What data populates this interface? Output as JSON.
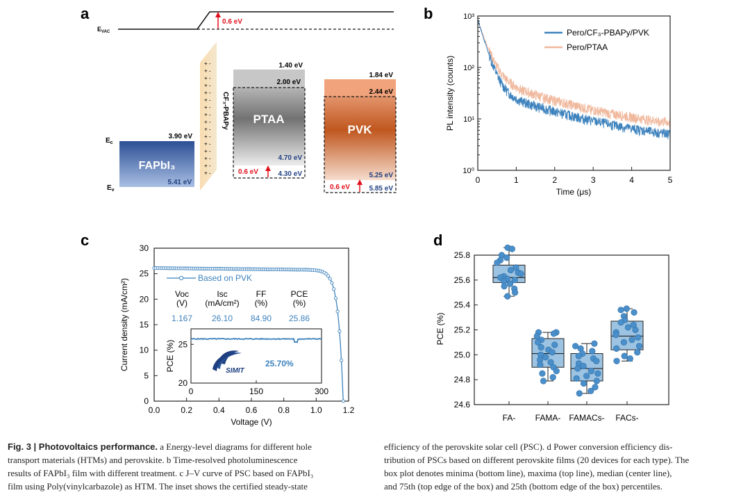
{
  "panels": {
    "a": "a",
    "b": "b",
    "c": "c",
    "d": "d"
  },
  "colors": {
    "blue": "#3d82bd",
    "peach": "#f0b89c",
    "red": "#e0101c",
    "navy": "#1f3f80",
    "point": "#4a8fca",
    "box": "#9dc3e2"
  },
  "panel_a": {
    "evac": "E",
    "evac_sub": "VAC",
    "ec": "E",
    "ec_sub": "c",
    "ev": "E",
    "ev_sub": "v",
    "shift": "0.6 eV",
    "fapbi3": {
      "name": "FAPbI₃",
      "top": "3.90 eV",
      "bottom": "5.41 eV"
    },
    "cf3": {
      "name": "CF₃-PBAPy",
      "charges": "+ -"
    },
    "ptaa": {
      "name": "PTAA",
      "lumo_old": "1.40 eV",
      "lumo_new": "2.00 eV",
      "homo_new": "4.70 eV",
      "homo_old": "4.30 eV",
      "shift": "0.6 eV"
    },
    "pvk": {
      "name": "PVK",
      "lumo_old": "1.84 eV",
      "lumo_new": "2.44 eV",
      "homo_new": "5.25 eV",
      "homo_old": "5.85 eV",
      "shift": "0.6 eV"
    }
  },
  "chart_data": [
    {
      "panel": "b",
      "type": "line",
      "xlabel": "Time (μs)",
      "ylabel": "PL intensity (counts)",
      "xlim": [
        0,
        5
      ],
      "ylim": [
        1,
        1000
      ],
      "yscale": "log",
      "xticks": [
        "0",
        "1",
        "2",
        "3",
        "4",
        "5"
      ],
      "yticks": [
        "10⁰",
        "10¹",
        "10²",
        "10³"
      ],
      "legend": "top-right",
      "series": [
        {
          "name": "Pero/CF₃-PBAPy/PVK",
          "color": "#3d82bd",
          "amp1": 820,
          "tau1": 0.17,
          "amp2": 35,
          "tau2": 1.7,
          "floor": 3.2
        },
        {
          "name": "Pero/PTAA",
          "color": "#f0b89c",
          "amp1": 750,
          "tau1": 0.19,
          "amp2": 60,
          "tau2": 1.55,
          "floor": 6.3
        }
      ]
    },
    {
      "panel": "c",
      "type": "line",
      "xlabel": "Voltage (V)",
      "ylabel": "Current density (mA/cm²)",
      "xlim": [
        0,
        1.2
      ],
      "ylim": [
        0,
        30
      ],
      "xticks": [
        "0.0",
        "0.2",
        "0.4",
        "0.6",
        "0.8",
        "1.0",
        "1.2"
      ],
      "yticks": [
        "0",
        "5",
        "10",
        "15",
        "20",
        "25",
        "30"
      ],
      "legend": "Based on PVK",
      "series": [
        {
          "name": "Based on PVK",
          "color": "#3d82bd",
          "jsc": 26.1,
          "voc": 1.167
        }
      ],
      "table": {
        "headers": [
          "Voc",
          "Isc",
          "FF",
          "PCE"
        ],
        "units": [
          "(V)",
          "(mA/cm²)",
          "(%)",
          "(%)"
        ],
        "values": [
          "1.167",
          "26.10",
          "84.90",
          "25.86"
        ]
      },
      "inset": {
        "type": "line",
        "ylabel": "PCE (%)",
        "xlim": [
          0,
          300
        ],
        "ylim": [
          20,
          27
        ],
        "xticks": [
          "0",
          "150",
          "300"
        ],
        "yticks": [
          "20",
          "25"
        ],
        "value": 25.7,
        "label": "25.70%",
        "logo": "SIMIT"
      }
    },
    {
      "panel": "d",
      "type": "box",
      "ylabel": "PCE (%)",
      "ylim": [
        24.6,
        25.8
      ],
      "yticks": [
        "24.6",
        "24.8",
        "25.0",
        "25.2",
        "25.4",
        "25.6",
        "25.8"
      ],
      "categories": [
        "FA-",
        "FAMA-",
        "FAMACs-",
        "FACs-"
      ],
      "boxes": [
        {
          "min": 25.47,
          "q1": 25.58,
          "median": 25.62,
          "q3": 25.72,
          "max": 25.86
        },
        {
          "min": 24.79,
          "q1": 24.9,
          "median": 25.01,
          "q3": 25.13,
          "max": 25.18
        },
        {
          "min": 24.69,
          "q1": 24.79,
          "median": 24.89,
          "q3": 25.01,
          "max": 25.09
        },
        {
          "min": 24.95,
          "q1": 25.04,
          "median": 25.15,
          "q3": 25.27,
          "max": 25.37
        }
      ],
      "points": [
        [
          25.86,
          25.85,
          25.8,
          25.78,
          25.76,
          25.74,
          25.7,
          25.68,
          25.66,
          25.65,
          25.63,
          25.62,
          25.61,
          25.6,
          25.59,
          25.57,
          25.55,
          25.53,
          25.5,
          25.47
        ],
        [
          25.18,
          25.18,
          25.17,
          25.15,
          25.12,
          25.1,
          25.08,
          25.06,
          25.04,
          25.02,
          25.0,
          24.98,
          24.96,
          24.94,
          24.92,
          24.9,
          24.87,
          24.85,
          24.82,
          24.79
        ],
        [
          25.09,
          25.07,
          25.05,
          25.03,
          25.01,
          24.99,
          24.97,
          24.95,
          24.93,
          24.91,
          24.89,
          24.87,
          24.85,
          24.83,
          24.81,
          24.79,
          24.77,
          24.74,
          24.71,
          24.69
        ],
        [
          25.37,
          25.36,
          25.34,
          25.31,
          25.28,
          25.26,
          25.24,
          25.22,
          25.2,
          25.18,
          25.16,
          25.14,
          25.12,
          25.1,
          25.07,
          25.05,
          25.02,
          24.99,
          24.97,
          24.95
        ]
      ]
    }
  ],
  "caption": {
    "label": "Fig. 3 | Photovoltaics performance.",
    "left_lines": [
      "a Energy-level diagrams for different hole",
      "transport materials (HTMs) and perovskite. b Time-resolved photoluminescence",
      "results of FAPbI₃ film with different treatment. c J–V curve of PSC based on FAPbI₃",
      "film using Poly(vinylcarbazole) as HTM. The inset shows the certified steady-state"
    ],
    "right_lines": [
      "efficiency of the perovskite solar cell (PSC). d Power conversion efficiency dis-",
      "tribution of PSCs based on different perovskite films (20 devices for each type). The",
      "box plot denotes minima (bottom line), maxima (top line), median (center line),",
      "and 75th (top edge of the box) and 25th (bottom edge of the box) percentiles."
    ]
  }
}
